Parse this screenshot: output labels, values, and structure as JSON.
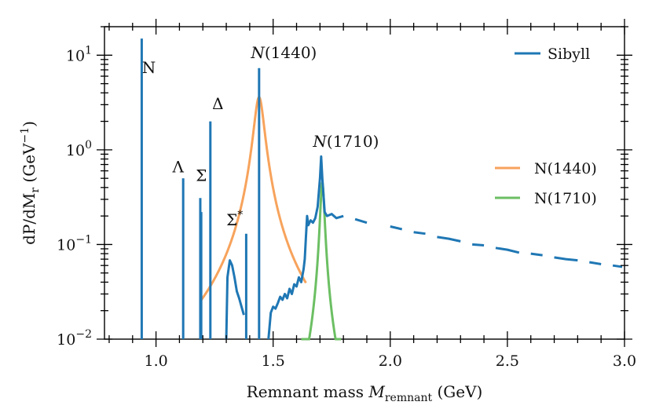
{
  "chart_data": {
    "type": "line",
    "title": "",
    "xlabel": "Remnant mass M_remnant (GeV)",
    "xlabel_parts": {
      "prefix": "Remnant mass ",
      "var": "M",
      "sub": "remnant",
      "suffix": " (GeV)"
    },
    "ylabel": "dP/dM_r (GeV^-1)",
    "ylabel_parts": {
      "main": "dP/dM",
      "sub": "r",
      "unit_open": " (GeV",
      "unit_sup": "−1",
      "unit_close": ")"
    },
    "yscale": "log",
    "xlim": [
      0.78,
      3.0
    ],
    "ylim": [
      0.01,
      20
    ],
    "x_ticks": [
      "1.0",
      "1.5",
      "2.0",
      "2.5",
      "3.0"
    ],
    "x_tick_values": [
      1.0,
      1.5,
      2.0,
      2.5,
      3.0
    ],
    "y_ticks": [
      {
        "base": "10",
        "exp": "−2",
        "value": 0.01
      },
      {
        "base": "10",
        "exp": "−1",
        "value": 0.1
      },
      {
        "base": "10",
        "exp": "0",
        "value": 1
      },
      {
        "base": "10",
        "exp": "1",
        "value": 10
      }
    ],
    "legend_position": "top-right",
    "colors": {
      "sibyll": "#1f77b4",
      "n1440": "#f7a35c",
      "n1710": "#6cbf63"
    },
    "series": [
      {
        "name": "Sibyll",
        "legend_label": "Sibyll",
        "spikes": [
          {
            "x": 0.939,
            "y": 15.0
          },
          {
            "x": 1.116,
            "y": 0.5
          },
          {
            "x": 1.189,
            "y": 0.31
          },
          {
            "x": 1.193,
            "y": 0.22
          },
          {
            "x": 1.232,
            "y": 2.0
          },
          {
            "x": 1.385,
            "y": 0.13
          },
          {
            "x": 1.44,
            "y": 7.3
          }
        ],
        "continuum": [
          [
            1.3,
            0.01
          ],
          [
            1.305,
            0.045
          ],
          [
            1.315,
            0.068
          ],
          [
            1.325,
            0.06
          ],
          [
            1.335,
            0.045
          ],
          [
            1.345,
            0.032
          ],
          [
            1.355,
            0.027
          ],
          [
            1.365,
            0.022
          ],
          [
            1.375,
            0.018
          ],
          [
            1.48,
            0.01
          ],
          [
            1.49,
            0.019
          ],
          [
            1.5,
            0.022
          ],
          [
            1.51,
            0.021
          ],
          [
            1.52,
            0.024
          ],
          [
            1.53,
            0.028
          ],
          [
            1.54,
            0.026
          ],
          [
            1.55,
            0.03
          ],
          [
            1.56,
            0.027
          ],
          [
            1.57,
            0.034
          ],
          [
            1.58,
            0.03
          ],
          [
            1.59,
            0.038
          ],
          [
            1.6,
            0.036
          ],
          [
            1.61,
            0.045
          ],
          [
            1.62,
            0.04
          ],
          [
            1.63,
            0.055
          ],
          [
            1.635,
            0.07
          ],
          [
            1.64,
            0.12
          ],
          [
            1.645,
            0.2
          ],
          [
            1.65,
            0.16
          ],
          [
            1.66,
            0.18
          ],
          [
            1.67,
            0.17
          ],
          [
            1.68,
            0.19
          ],
          [
            1.69,
            0.25
          ],
          [
            1.7,
            0.5
          ],
          [
            1.705,
            0.85
          ],
          [
            1.71,
            0.5
          ],
          [
            1.72,
            0.22
          ],
          [
            1.73,
            0.2
          ],
          [
            1.75,
            0.21
          ],
          [
            1.77,
            0.19
          ],
          [
            1.8,
            0.2
          ],
          [
            1.85,
            0.185
          ],
          [
            1.9,
            0.17
          ],
          [
            1.95,
            0.16
          ],
          [
            2.0,
            0.155
          ],
          [
            2.05,
            0.145
          ],
          [
            2.1,
            0.135
          ],
          [
            2.15,
            0.13
          ],
          [
            2.2,
            0.12
          ],
          [
            2.25,
            0.115
          ],
          [
            2.3,
            0.108
          ],
          [
            2.35,
            0.1
          ],
          [
            2.4,
            0.098
          ],
          [
            2.45,
            0.092
          ],
          [
            2.5,
            0.088
          ],
          [
            2.55,
            0.082
          ],
          [
            2.6,
            0.08
          ],
          [
            2.65,
            0.077
          ],
          [
            2.7,
            0.073
          ],
          [
            2.75,
            0.07
          ],
          [
            2.8,
            0.068
          ],
          [
            2.85,
            0.065
          ],
          [
            2.9,
            0.062
          ],
          [
            2.95,
            0.06
          ],
          [
            2.99,
            0.058
          ]
        ]
      },
      {
        "name": "N(1440)",
        "legend_label": "N(1440)",
        "shape": "breit-wigner",
        "mass": 1.44,
        "width": 0.021,
        "peak": 3.6,
        "range": [
          1.19,
          1.64
        ]
      },
      {
        "name": "N(1710)",
        "legend_label": "N(1710)",
        "shape": "breit-wigner",
        "mass": 1.71,
        "width": 0.0085,
        "peak": 0.45,
        "range": [
          1.62,
          1.79
        ]
      }
    ],
    "annotations": [
      {
        "name": "N",
        "text": "N",
        "x": 0.94,
        "y": 6.5
      },
      {
        "name": "Lambda",
        "text": "Λ",
        "x": 1.07,
        "y": 0.58
      },
      {
        "name": "Sigma",
        "text": "Σ",
        "x": 1.17,
        "y": 0.47
      },
      {
        "name": "Delta",
        "text": "Δ",
        "x": 1.24,
        "y": 2.7
      },
      {
        "name": "Sigma-star",
        "text": "Σ",
        "sup": "*",
        "x": 1.3,
        "y": 0.16
      },
      {
        "name": "N1440",
        "italic": "N",
        "text": "(1440)",
        "x": 1.405,
        "y": 9.3
      },
      {
        "name": "N1710",
        "italic": "N",
        "text": "(1710)",
        "x": 1.67,
        "y": 1.08
      }
    ]
  }
}
